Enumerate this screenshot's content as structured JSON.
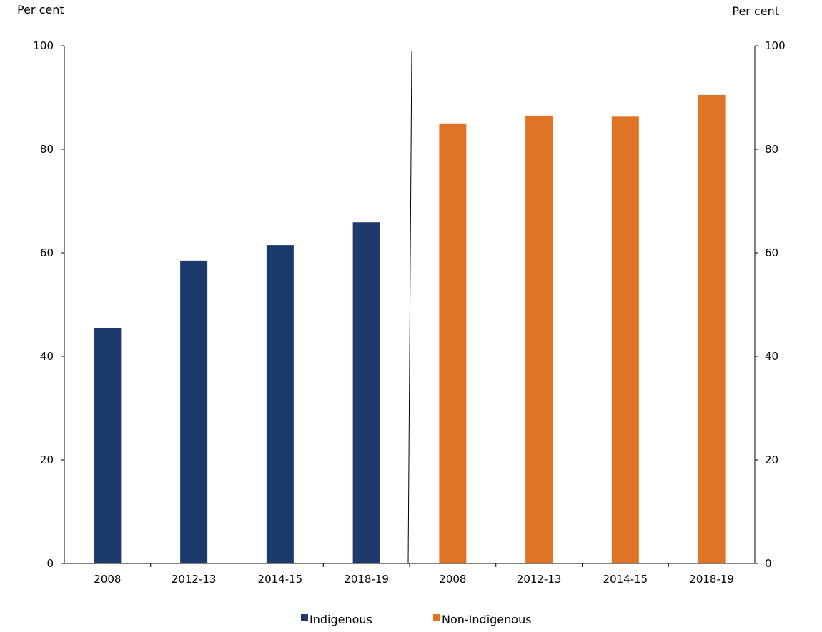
{
  "chart_data": {
    "type": "bar",
    "categories": [
      "2008",
      "2012-13",
      "2014-15",
      "2018-19",
      "2008",
      "2012-13",
      "2014-15",
      "2018-19"
    ],
    "series": [
      {
        "name": "Indigenous",
        "color": "#1c3a6b",
        "values": [
          45.5,
          58.5,
          61.5,
          65.9,
          null,
          null,
          null,
          null
        ]
      },
      {
        "name": "Non-Indigenous",
        "color": "#e07426",
        "values": [
          null,
          null,
          null,
          null,
          85.0,
          86.5,
          86.3,
          90.5
        ]
      }
    ],
    "left_axis": {
      "unit_label": "Per cent",
      "ylim": [
        0,
        100
      ],
      "ticks": [
        "0",
        "20",
        "40",
        "60",
        "80",
        "100"
      ]
    },
    "right_axis": {
      "unit_label": "Per cent",
      "ylim": [
        0,
        100
      ],
      "ticks": [
        "0",
        "20",
        "40",
        "60",
        "80",
        "100"
      ]
    },
    "divider_after_category_index": 3,
    "legend": {
      "placement": "bottom-center"
    },
    "grid": false
  }
}
